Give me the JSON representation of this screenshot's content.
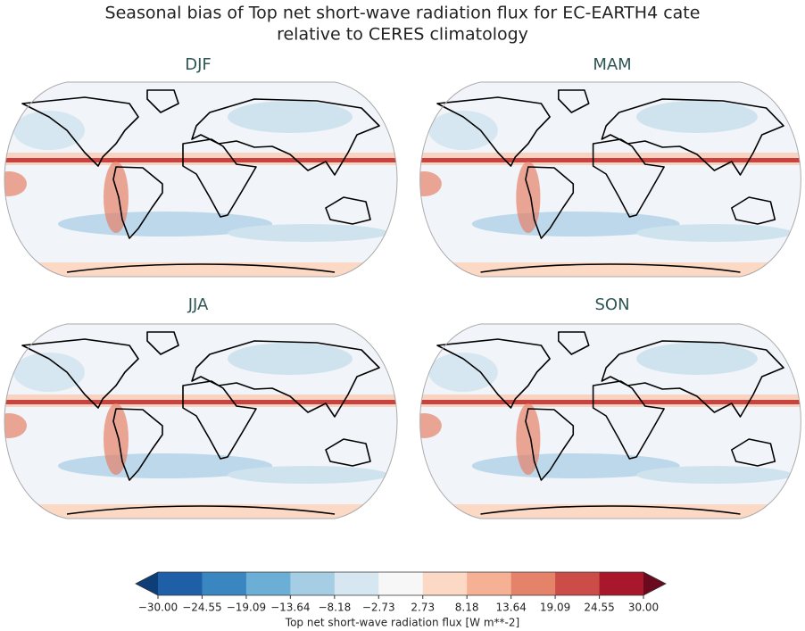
{
  "title_lines": [
    "Seasonal bias of Top net short-wave radiation flux for EC-EARTH4 cate",
    "relative to CERES climatology"
  ],
  "panels": [
    {
      "title": "DJF"
    },
    {
      "title": "MAM"
    },
    {
      "title": "JJA"
    },
    {
      "title": "SON"
    }
  ],
  "colorbar": {
    "label": "Top net short-wave radiation flux [W m**-2]",
    "clim": [
      -30,
      30
    ],
    "ticks": [
      {
        "value": -30,
        "label": "−30.00"
      },
      {
        "value": -24.55,
        "label": "−24.55"
      },
      {
        "value": -19.09,
        "label": "−19.09"
      },
      {
        "value": -13.64,
        "label": "−13.64"
      },
      {
        "value": -8.18,
        "label": "−8.18"
      },
      {
        "value": -2.73,
        "label": "−2.73"
      },
      2.73,
      8.18,
      13.64,
      19.09,
      24.55,
      {
        "value": 30,
        "label": "30.00"
      }
    ],
    "colors": [
      "#1f5fa8",
      "#3a86c0",
      "#6baed6",
      "#a5cde3",
      "#d6e7f1",
      "#f7f7f7",
      "#fbd9c5",
      "#f6b194",
      "#e5826a",
      "#cc4d47",
      "#a8172b"
    ],
    "under_color": "#0e3d78",
    "over_color": "#6b0a1f"
  }
}
